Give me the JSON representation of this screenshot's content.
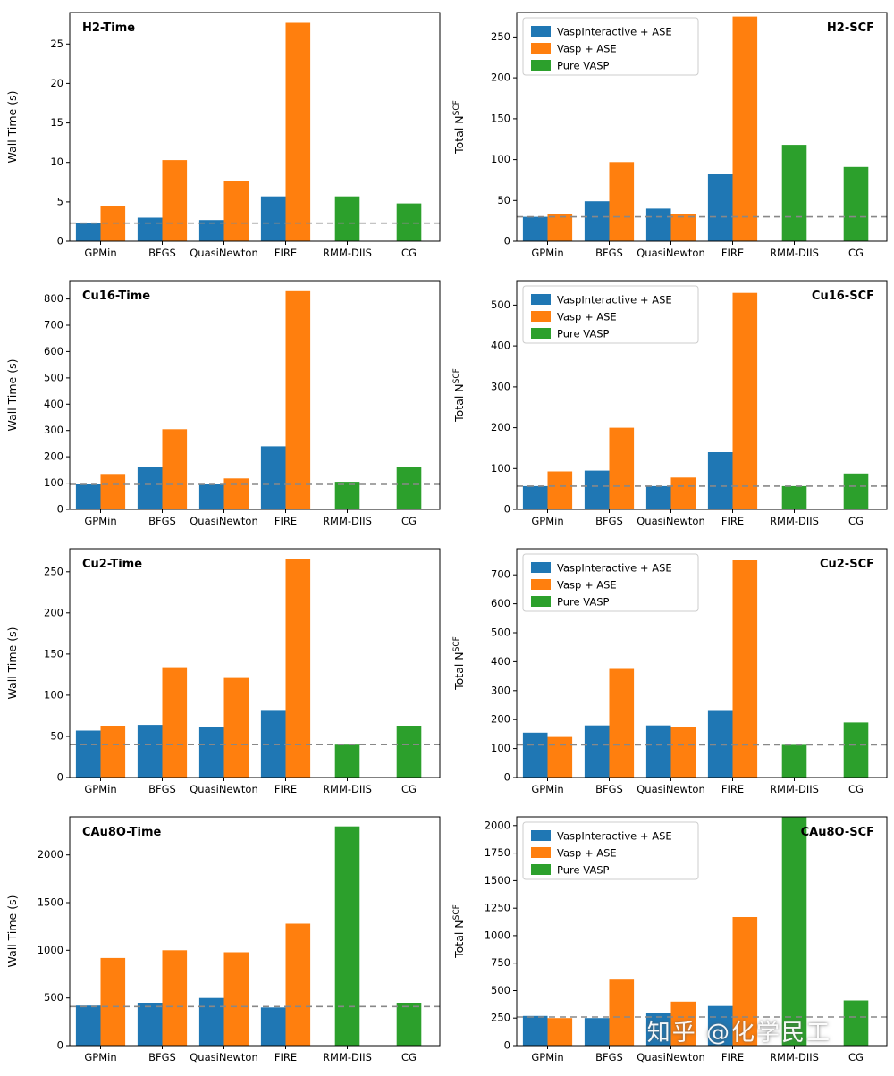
{
  "watermark": {
    "text": "知乎 @化学民工"
  },
  "colors": {
    "blue": "#1f77b4",
    "orange": "#ff7f0e",
    "green": "#2ca02c",
    "baseline": "#888888"
  },
  "legend_labels": [
    "VaspInteractive + ASE",
    "Vasp + ASE",
    "Pure VASP"
  ],
  "categories": [
    "GPMin",
    "BFGS",
    "QuasiNewton",
    "FIRE",
    "RMM-DIIS",
    "CG"
  ],
  "chart_data": [
    {
      "type": "bar",
      "title": "H2-Time",
      "title_side": "left",
      "ylabel": "Wall Time (s)",
      "ylabel_sup": "",
      "ylim": [
        0,
        29
      ],
      "yticks": [
        0,
        5,
        10,
        15,
        20,
        25
      ],
      "baseline": 2.3,
      "legend": false,
      "series": [
        {
          "name": "VaspInteractive + ASE",
          "color": "#1f77b4",
          "values": [
            2.3,
            3.0,
            2.7,
            5.7,
            null,
            null
          ]
        },
        {
          "name": "Vasp + ASE",
          "color": "#ff7f0e",
          "values": [
            4.5,
            10.3,
            7.6,
            27.7,
            null,
            null
          ]
        },
        {
          "name": "Pure VASP",
          "color": "#2ca02c",
          "values": [
            null,
            null,
            null,
            null,
            5.7,
            4.8
          ]
        }
      ]
    },
    {
      "type": "bar",
      "title": "H2-SCF",
      "title_side": "right",
      "ylabel": "Total N",
      "ylabel_sup": "SCF",
      "ylim": [
        0,
        280
      ],
      "yticks": [
        0,
        50,
        100,
        150,
        200,
        250
      ],
      "baseline": 30,
      "legend": true,
      "series": [
        {
          "name": "VaspInteractive + ASE",
          "color": "#1f77b4",
          "values": [
            30,
            49,
            40,
            82,
            null,
            null
          ]
        },
        {
          "name": "Vasp + ASE",
          "color": "#ff7f0e",
          "values": [
            33,
            97,
            33,
            275,
            null,
            null
          ]
        },
        {
          "name": "Pure VASP",
          "color": "#2ca02c",
          "values": [
            null,
            null,
            null,
            null,
            118,
            91
          ]
        }
      ]
    },
    {
      "type": "bar",
      "title": "Cu16-Time",
      "title_side": "left",
      "ylabel": "Wall Time (s)",
      "ylabel_sup": "",
      "ylim": [
        0,
        870
      ],
      "yticks": [
        0,
        100,
        200,
        300,
        400,
        500,
        600,
        700,
        800
      ],
      "baseline": 95,
      "legend": false,
      "series": [
        {
          "name": "VaspInteractive + ASE",
          "color": "#1f77b4",
          "values": [
            95,
            160,
            95,
            240,
            null,
            null
          ]
        },
        {
          "name": "Vasp + ASE",
          "color": "#ff7f0e",
          "values": [
            135,
            305,
            118,
            830,
            null,
            null
          ]
        },
        {
          "name": "Pure VASP",
          "color": "#2ca02c",
          "values": [
            null,
            null,
            null,
            null,
            105,
            160
          ]
        }
      ]
    },
    {
      "type": "bar",
      "title": "Cu16-SCF",
      "title_side": "right",
      "ylabel": "Total N",
      "ylabel_sup": "SCF",
      "ylim": [
        0,
        560
      ],
      "yticks": [
        0,
        100,
        200,
        300,
        400,
        500
      ],
      "baseline": 57,
      "legend": true,
      "series": [
        {
          "name": "VaspInteractive + ASE",
          "color": "#1f77b4",
          "values": [
            57,
            95,
            57,
            140,
            null,
            null
          ]
        },
        {
          "name": "Vasp + ASE",
          "color": "#ff7f0e",
          "values": [
            93,
            200,
            78,
            530,
            null,
            null
          ]
        },
        {
          "name": "Pure VASP",
          "color": "#2ca02c",
          "values": [
            null,
            null,
            null,
            null,
            57,
            88
          ]
        }
      ]
    },
    {
      "type": "bar",
      "title": "Cu2-Time",
      "title_side": "left",
      "ylabel": "Wall Time (s)",
      "ylabel_sup": "",
      "ylim": [
        0,
        278
      ],
      "yticks": [
        0,
        50,
        100,
        150,
        200,
        250
      ],
      "baseline": 40,
      "legend": false,
      "series": [
        {
          "name": "VaspInteractive + ASE",
          "color": "#1f77b4",
          "values": [
            57,
            64,
            61,
            81,
            null,
            null
          ]
        },
        {
          "name": "Vasp + ASE",
          "color": "#ff7f0e",
          "values": [
            63,
            134,
            121,
            265,
            null,
            null
          ]
        },
        {
          "name": "Pure VASP",
          "color": "#2ca02c",
          "values": [
            null,
            null,
            null,
            null,
            40,
            63
          ]
        }
      ]
    },
    {
      "type": "bar",
      "title": "Cu2-SCF",
      "title_side": "right",
      "ylabel": "Total N",
      "ylabel_sup": "SCF",
      "ylim": [
        0,
        790
      ],
      "yticks": [
        0,
        100,
        200,
        300,
        400,
        500,
        600,
        700
      ],
      "baseline": 113,
      "legend": true,
      "series": [
        {
          "name": "VaspInteractive + ASE",
          "color": "#1f77b4",
          "values": [
            155,
            180,
            180,
            230,
            null,
            null
          ]
        },
        {
          "name": "Vasp + ASE",
          "color": "#ff7f0e",
          "values": [
            140,
            375,
            175,
            750,
            null,
            null
          ]
        },
        {
          "name": "Pure VASP",
          "color": "#2ca02c",
          "values": [
            null,
            null,
            null,
            null,
            113,
            190
          ]
        }
      ]
    },
    {
      "type": "bar",
      "title": "CAu8O-Time",
      "title_side": "left",
      "ylabel": "Wall Time (s)",
      "ylabel_sup": "",
      "ylim": [
        0,
        2400
      ],
      "yticks": [
        0,
        500,
        1000,
        1500,
        2000
      ],
      "baseline": 410,
      "legend": false,
      "series": [
        {
          "name": "VaspInteractive + ASE",
          "color": "#1f77b4",
          "values": [
            420,
            450,
            500,
            400,
            null,
            null
          ]
        },
        {
          "name": "Vasp + ASE",
          "color": "#ff7f0e",
          "values": [
            920,
            1000,
            980,
            1280,
            null,
            null
          ]
        },
        {
          "name": "Pure VASP",
          "color": "#2ca02c",
          "values": [
            null,
            null,
            null,
            null,
            2300,
            450
          ]
        }
      ]
    },
    {
      "type": "bar",
      "title": "CAu8O-SCF",
      "title_side": "right",
      "ylabel": "Total N",
      "ylabel_sup": "SCF",
      "ylim": [
        0,
        2080
      ],
      "yticks": [
        0,
        250,
        500,
        750,
        1000,
        1250,
        1500,
        1750,
        2000
      ],
      "baseline": 260,
      "legend": true,
      "series": [
        {
          "name": "VaspInteractive + ASE",
          "color": "#1f77b4",
          "values": [
            270,
            250,
            300,
            360,
            null,
            null
          ]
        },
        {
          "name": "Vasp + ASE",
          "color": "#ff7f0e",
          "values": [
            250,
            600,
            400,
            1170,
            null,
            null
          ]
        },
        {
          "name": "Pure VASP",
          "color": "#2ca02c",
          "values": [
            null,
            null,
            null,
            null,
            2300,
            410
          ]
        }
      ]
    }
  ]
}
